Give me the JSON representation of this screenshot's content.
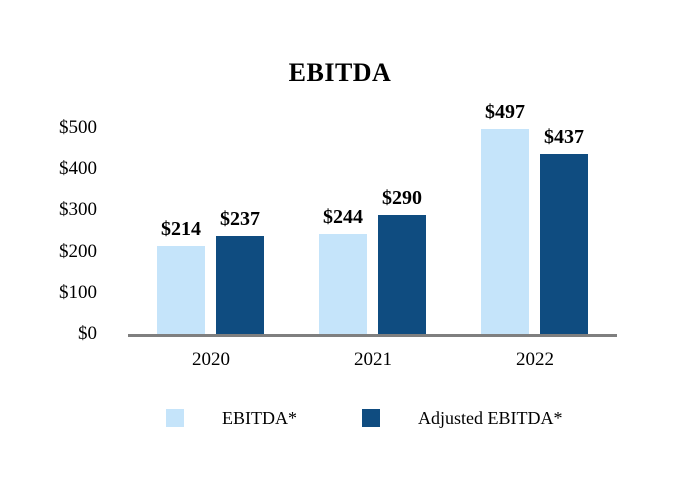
{
  "title": "EBITDA",
  "colors": {
    "series_light": "#c5e4fa",
    "series_dark": "#0f4c80",
    "axis_line": "#7f7f7f",
    "text": "#000000",
    "background": "#ffffff"
  },
  "chart_data": {
    "type": "bar",
    "title": "EBITDA",
    "categories": [
      "2020",
      "2021",
      "2022"
    ],
    "series": [
      {
        "name": "EBITDA*",
        "color": "#c5e4fa",
        "values": [
          214,
          244,
          497
        ]
      },
      {
        "name": "Adjusted EBITDA*",
        "color": "#0f4c80",
        "values": [
          237,
          290,
          437
        ]
      }
    ],
    "data_labels": [
      [
        "$214",
        "$244",
        "$497"
      ],
      [
        "$237",
        "$290",
        "$437"
      ]
    ],
    "xlabel": "",
    "ylabel": "",
    "ylim": [
      0,
      500
    ],
    "yticks": [
      "$500",
      "$400",
      "$300",
      "$200",
      "$100",
      "$0"
    ],
    "grid": false,
    "legend_position": "bottom"
  }
}
